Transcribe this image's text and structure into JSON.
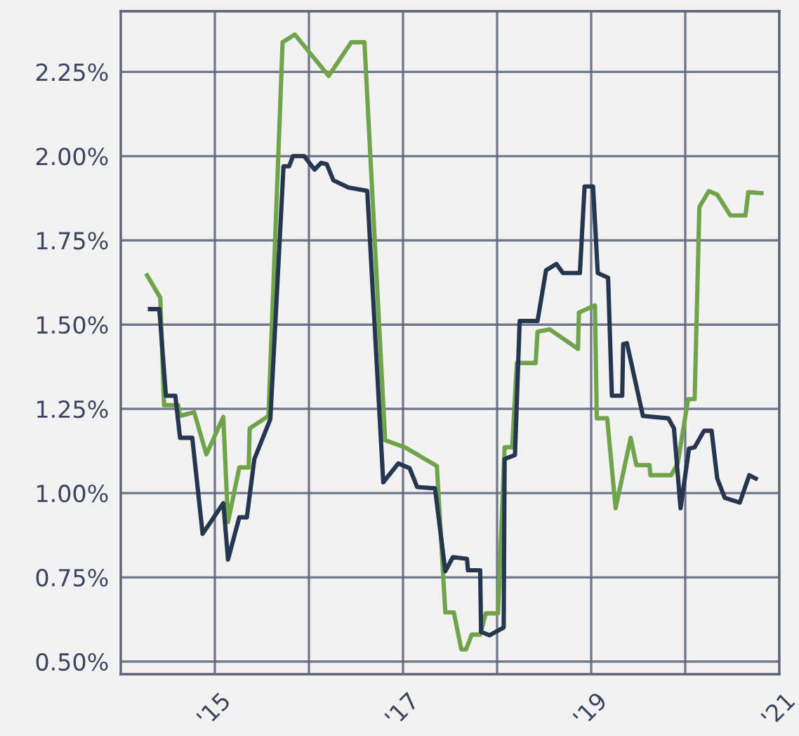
{
  "chart_data": {
    "type": "line",
    "xlim": [
      2014,
      2021
    ],
    "ylim": [
      0.4625,
      2.43
    ],
    "xticks": [
      {
        "value": 2015,
        "label": "'15"
      },
      {
        "value": 2016,
        "label": null
      },
      {
        "value": 2017,
        "label": "'17"
      },
      {
        "value": 2018,
        "label": null
      },
      {
        "value": 2019,
        "label": "'19"
      },
      {
        "value": 2020,
        "label": null
      },
      {
        "value": 2021,
        "label": "'21"
      }
    ],
    "yticks": [
      {
        "value": 0.5,
        "label": "0.50%"
      },
      {
        "value": 0.75,
        "label": "0.75%"
      },
      {
        "value": 1.0,
        "label": "1.00%"
      },
      {
        "value": 1.25,
        "label": "1.25%"
      },
      {
        "value": 1.5,
        "label": "1.50%"
      },
      {
        "value": 1.75,
        "label": "1.75%"
      },
      {
        "value": 2.0,
        "label": "2.00%"
      },
      {
        "value": 2.25,
        "label": "2.25%"
      }
    ],
    "grid": true,
    "marker": "none",
    "line_style": "solid",
    "series": [
      {
        "color": "#6fa44a",
        "x": [
          2014.28,
          2014.42,
          2014.46,
          2014.61,
          2014.63,
          2014.78,
          2014.91,
          2015.09,
          2015.14,
          2015.26,
          2015.36,
          2015.37,
          2015.57,
          2015.72,
          2015.85,
          2016.21,
          2016.45,
          2016.59,
          2016.81,
          2017.02,
          2017.36,
          2017.45,
          2017.54,
          2017.62,
          2017.67,
          2017.73,
          2017.82,
          2017.88,
          2018.01,
          2018.08,
          2018.16,
          2018.21,
          2018.41,
          2018.43,
          2018.56,
          2018.86,
          2018.87,
          2019.04,
          2019.06,
          2019.17,
          2019.26,
          2019.42,
          2019.48,
          2019.62,
          2019.63,
          2019.85,
          2019.92,
          2020.03,
          2020.1,
          2020.15,
          2020.25,
          2020.34,
          2020.48,
          2020.64,
          2020.67,
          2020.81
        ],
        "values": [
          1.646,
          1.58,
          1.261,
          1.261,
          1.229,
          1.24,
          1.115,
          1.226,
          0.914,
          1.076,
          1.076,
          1.192,
          1.229,
          2.338,
          2.361,
          2.238,
          2.338,
          2.338,
          1.157,
          1.136,
          1.08,
          0.646,
          0.646,
          0.536,
          0.536,
          0.58,
          0.58,
          0.643,
          0.643,
          1.136,
          1.136,
          1.386,
          1.386,
          1.479,
          1.486,
          1.428,
          1.536,
          1.557,
          1.222,
          1.222,
          0.955,
          1.164,
          1.083,
          1.083,
          1.053,
          1.053,
          1.088,
          1.279,
          1.279,
          1.849,
          1.896,
          1.886,
          1.824,
          1.824,
          1.893,
          1.89
        ]
      },
      {
        "color": "#253650",
        "x": [
          2014.31,
          2014.41,
          2014.48,
          2014.58,
          2014.63,
          2014.76,
          2014.87,
          2015.09,
          2015.14,
          2015.26,
          2015.34,
          2015.42,
          2015.59,
          2015.73,
          2015.79,
          2015.83,
          2015.95,
          2016.06,
          2016.13,
          2016.19,
          2016.26,
          2016.42,
          2016.62,
          2016.79,
          2016.95,
          2017.07,
          2017.15,
          2017.34,
          2017.45,
          2017.53,
          2017.68,
          2017.69,
          2017.82,
          2017.83,
          2017.92,
          2018.07,
          2018.08,
          2018.19,
          2018.24,
          2018.43,
          2018.52,
          2018.63,
          2018.7,
          2018.88,
          2018.93,
          2019.02,
          2019.07,
          2019.18,
          2019.22,
          2019.33,
          2019.34,
          2019.38,
          2019.55,
          2019.82,
          2019.88,
          2019.95,
          2020.04,
          2020.1,
          2020.2,
          2020.28,
          2020.34,
          2020.42,
          2020.58,
          2020.68,
          2020.75
        ],
        "values": [
          1.546,
          1.546,
          1.289,
          1.289,
          1.164,
          1.164,
          0.879,
          0.97,
          0.803,
          0.928,
          0.928,
          1.101,
          1.22,
          1.97,
          1.97,
          2.0,
          2.0,
          1.96,
          1.98,
          1.976,
          1.928,
          1.907,
          1.897,
          1.032,
          1.088,
          1.074,
          1.018,
          1.014,
          0.768,
          0.81,
          0.805,
          0.771,
          0.771,
          0.588,
          0.578,
          0.601,
          1.101,
          1.113,
          1.511,
          1.511,
          1.661,
          1.68,
          1.653,
          1.653,
          1.91,
          1.91,
          1.653,
          1.639,
          1.289,
          1.289,
          1.442,
          1.445,
          1.229,
          1.222,
          1.192,
          0.955,
          1.132,
          1.136,
          1.185,
          1.185,
          1.043,
          0.986,
          0.972,
          1.053,
          1.043
        ]
      }
    ]
  }
}
